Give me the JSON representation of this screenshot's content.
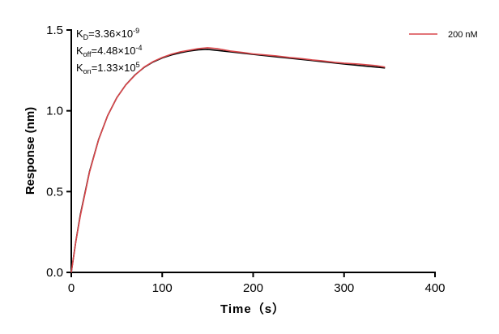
{
  "chart_data": {
    "type": "line",
    "xlabel": "Time（s）",
    "ylabel": "Response (nm)",
    "xlim": [
      0,
      400
    ],
    "ylim": [
      0,
      1.5
    ],
    "xticks": [
      "0",
      "100",
      "200",
      "300",
      "400"
    ],
    "yticks": [
      "0.0",
      "0.5",
      "1.0",
      "1.5"
    ],
    "grid": false,
    "legend_position": "top-right",
    "annotations": {
      "kd": {
        "sym": "K",
        "sub": "D",
        "text": "=3.36×10",
        "sup": "-9"
      },
      "koff": {
        "sym": "K",
        "sub": "off",
        "text": "=4.48×10",
        "sup": "-4"
      },
      "kon": {
        "sym": "K",
        "sub": "on",
        "text": "=1.33×10",
        "sup": "5"
      }
    },
    "series": [
      {
        "name": "200 nM",
        "color": "#d9474b",
        "x": [
          0,
          5,
          10,
          20,
          30,
          40,
          50,
          60,
          70,
          80,
          90,
          100,
          110,
          120,
          130,
          140,
          150,
          160,
          175,
          190,
          200,
          215,
          225,
          240,
          250,
          265,
          275,
          290,
          300,
          315,
          325,
          335,
          345
        ],
        "y": [
          0,
          0.19,
          0.35,
          0.62,
          0.82,
          0.97,
          1.08,
          1.16,
          1.22,
          1.27,
          1.305,
          1.33,
          1.35,
          1.365,
          1.375,
          1.385,
          1.39,
          1.385,
          1.37,
          1.36,
          1.352,
          1.345,
          1.34,
          1.33,
          1.325,
          1.315,
          1.31,
          1.3,
          1.295,
          1.29,
          1.285,
          1.28,
          1.27
        ]
      },
      {
        "color": "#000000",
        "x": [
          0,
          5,
          10,
          20,
          30,
          40,
          50,
          60,
          70,
          80,
          90,
          100,
          110,
          120,
          130,
          140,
          150,
          175,
          200,
          225,
          250,
          275,
          300,
          325,
          345
        ],
        "y": [
          0,
          0.192,
          0.358,
          0.624,
          0.822,
          0.97,
          1.08,
          1.161,
          1.222,
          1.268,
          1.302,
          1.327,
          1.345,
          1.359,
          1.37,
          1.377,
          1.38,
          1.365,
          1.349,
          1.334,
          1.32,
          1.305,
          1.29,
          1.276,
          1.265
        ]
      }
    ]
  }
}
